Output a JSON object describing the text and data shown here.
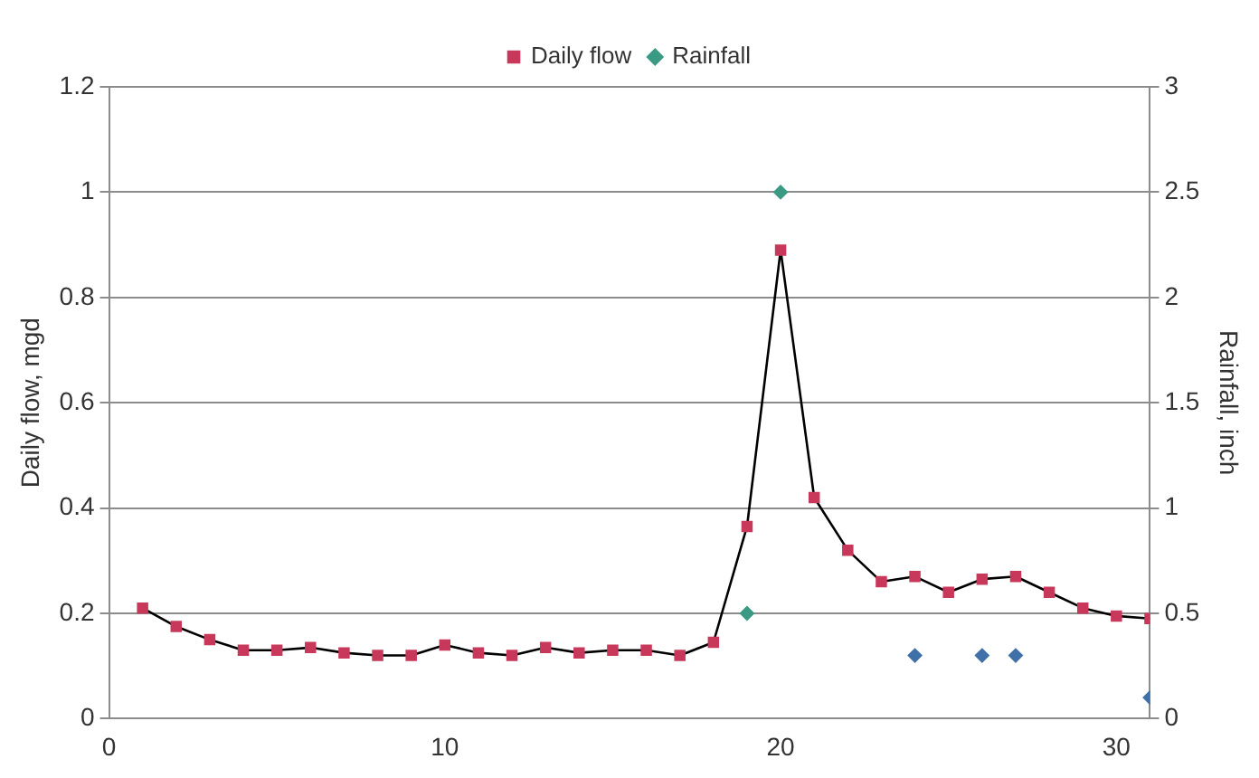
{
  "chart_data": {
    "type": "line",
    "xlabel": null,
    "ylabel": "Daily flow, mgd",
    "y2label": "Rainfall, inch",
    "xlim": [
      0,
      31
    ],
    "xticks": [
      0,
      10,
      20,
      30
    ],
    "ylim": [
      0,
      1.2
    ],
    "yticks": [
      0,
      0.2,
      0.4,
      0.6,
      0.8,
      1,
      1.2
    ],
    "y2lim": [
      0,
      3
    ],
    "y2ticks": [
      0,
      0.5,
      1,
      1.5,
      2,
      2.5,
      3
    ],
    "grid": "y",
    "legend": "top",
    "series": [
      {
        "name": "Daily flow",
        "color": "#c8385a",
        "marker": "square",
        "x": [
          1,
          2,
          3,
          4,
          5,
          6,
          7,
          8,
          9,
          10,
          11,
          12,
          13,
          14,
          15,
          16,
          17,
          18,
          19,
          20,
          21,
          22,
          23,
          24,
          25,
          26,
          27,
          28,
          29,
          30,
          31
        ],
        "values": [
          0.21,
          0.175,
          0.15,
          0.13,
          0.13,
          0.135,
          0.125,
          0.12,
          0.12,
          0.14,
          0.125,
          0.12,
          0.135,
          0.125,
          0.13,
          0.13,
          0.12,
          0.145,
          0.365,
          0.89,
          0.42,
          0.32,
          0.26,
          0.27,
          0.24,
          0.265,
          0.27,
          0.24,
          0.21,
          0.195,
          0.19
        ]
      },
      {
        "name": "Rainfall",
        "type": "scatter",
        "axis": "y2",
        "color": "#3a9a84",
        "colors": [
          "#3a9a84",
          "#3a9a84",
          "#3f70a8",
          "#3f70a8",
          "#3f70a8",
          "#3f70a8"
        ],
        "marker": "diamond",
        "x": [
          19,
          20,
          24,
          26,
          27,
          31
        ],
        "values": [
          0.5,
          2.5,
          0.3,
          0.3,
          0.3,
          0.1
        ]
      }
    ]
  }
}
